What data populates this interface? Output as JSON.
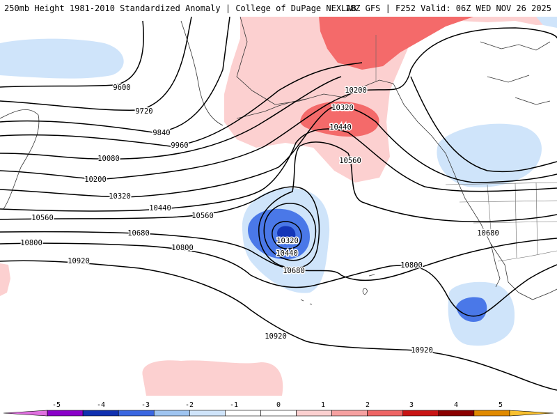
{
  "header": {
    "title_left": "250mb Height 1981-2010 Standardized Anomaly | College of DuPage NEXLAB",
    "title_right": "18Z GFS | F252 Valid: 06Z WED NOV 26 2025"
  },
  "map": {
    "contour_labels": [
      {
        "id": "c9600",
        "text": "9600"
      },
      {
        "id": "c9720",
        "text": "9720"
      },
      {
        "id": "c9840",
        "text": "9840"
      },
      {
        "id": "c9960",
        "text": "9960"
      },
      {
        "id": "c10080",
        "text": "10080"
      },
      {
        "id": "c10200a",
        "text": "10200"
      },
      {
        "id": "c10200b",
        "text": "10200"
      },
      {
        "id": "c10320a",
        "text": "10320"
      },
      {
        "id": "c10320b",
        "text": "10320"
      },
      {
        "id": "c10320c",
        "text": "10320"
      },
      {
        "id": "c10440a",
        "text": "10440"
      },
      {
        "id": "c10440b",
        "text": "10440"
      },
      {
        "id": "c10440c",
        "text": "10440"
      },
      {
        "id": "c10560a",
        "text": "10560"
      },
      {
        "id": "c10560b",
        "text": "10560"
      },
      {
        "id": "c10560c",
        "text": "10560"
      },
      {
        "id": "c10680a",
        "text": "10680"
      },
      {
        "id": "c10680b",
        "text": "10680"
      },
      {
        "id": "c10680c",
        "text": "10680"
      },
      {
        "id": "c10800a",
        "text": "10800"
      },
      {
        "id": "c10800b",
        "text": "10800"
      },
      {
        "id": "c10800c",
        "text": "10800"
      },
      {
        "id": "c10920a",
        "text": "10920"
      },
      {
        "id": "c10920b",
        "text": "10920"
      },
      {
        "id": "c10920c",
        "text": "10920"
      }
    ]
  },
  "colorbar": {
    "ticks": [
      "-5",
      "-4",
      "-3",
      "-2",
      "-1",
      "0",
      "1",
      "2",
      "3",
      "4",
      "5"
    ],
    "colors": [
      "#e070e0",
      "#8a00c8",
      "#1030b0",
      "#3a66e0",
      "#9ec4f0",
      "#cfe4fa",
      "#ffffff",
      "#ffffff",
      "#fcd0d0",
      "#f6a0a0",
      "#ee6464",
      "#c81414",
      "#8a0000",
      "#e08a00",
      "#f8c030"
    ]
  },
  "colors": {
    "neg1": "#cfe4fa",
    "neg2": "#4a78e8",
    "neg3": "#1536b8",
    "pos1": "#fcd0d0",
    "pos2": "#f46a6a"
  }
}
